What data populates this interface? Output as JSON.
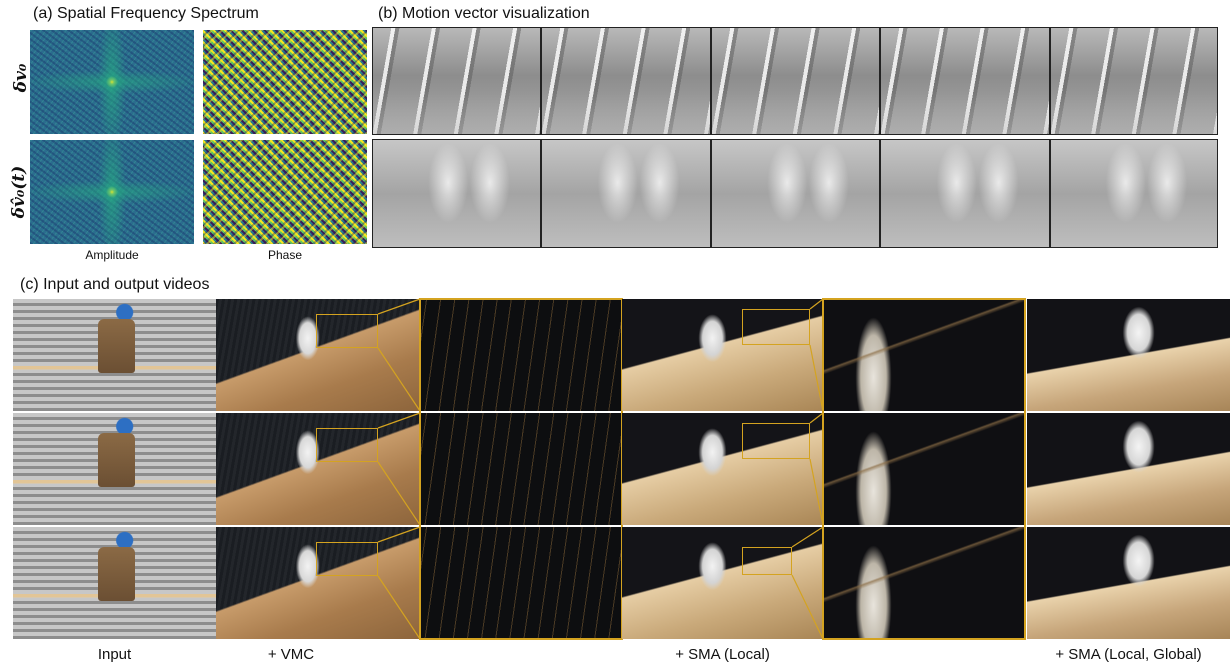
{
  "panel_a": {
    "title": "(a) Spatial Frequency Spectrum",
    "row_labels": [
      "δv₀",
      "δv̂₀(t)"
    ],
    "col_labels": [
      "Amplitude",
      "Phase"
    ]
  },
  "panel_b": {
    "title": "(b) Motion vector visualization"
  },
  "panel_c": {
    "title": "(c) Input and output videos",
    "col_labels": [
      "Input",
      "+ VMC",
      "+ SMA (Local)",
      "+ SMA (Local, Global)"
    ]
  },
  "colors": {
    "zoom_frame": "#d4a320",
    "spectrum_low": "#2b6d8e",
    "spectrum_high": "#f5e620"
  }
}
